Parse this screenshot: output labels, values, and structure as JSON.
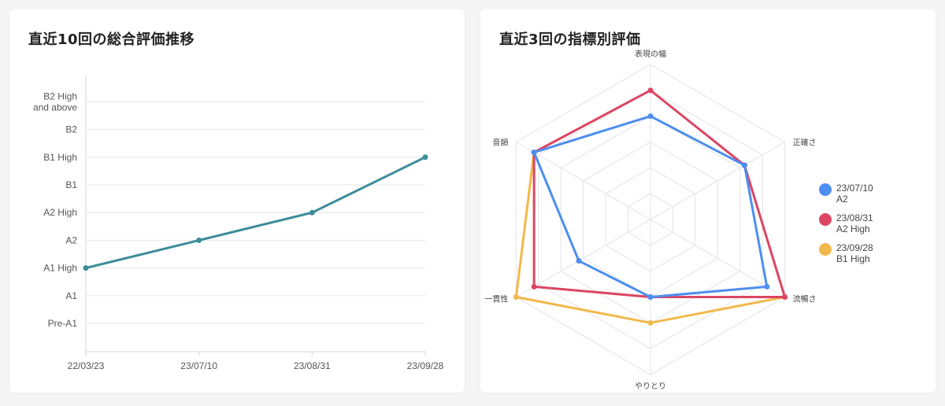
{
  "left_card": {
    "title": "直近10回の総合評価推移"
  },
  "right_card": {
    "title": "直近3回の指標別評価"
  },
  "chart_data": [
    {
      "type": "line",
      "title": "直近10回の総合評価推移",
      "xlabel": "",
      "ylabel": "",
      "y_categories": [
        "Pre-A1",
        "A1",
        "A1 High",
        "A2",
        "A2 High",
        "B1",
        "B1 High",
        "B2",
        "B2 High and above"
      ],
      "y_tick_lines": [
        [
          "Pre-A1"
        ],
        [
          "A1"
        ],
        [
          "A1 High"
        ],
        [
          "A2"
        ],
        [
          "A2 High"
        ],
        [
          "B1"
        ],
        [
          "B1 High"
        ],
        [
          "B2"
        ],
        [
          "B2 High",
          "and above"
        ]
      ],
      "categories": [
        "22/03/23",
        "23/07/10",
        "23/08/31",
        "23/09/28"
      ],
      "series": [
        {
          "values": [
            "A1 High",
            "A2",
            "A2 High",
            "B1 High"
          ],
          "color": "#3d8c9a"
        }
      ],
      "grid": true
    },
    {
      "type": "radar",
      "title": "直近3回の指標別評価",
      "axes": [
        "表現の幅",
        "正確さ",
        "流暢さ",
        "やりとり",
        "一貫性",
        "音韻"
      ],
      "range": [
        0,
        5
      ],
      "legend_position": "right",
      "series": [
        {
          "name": "23/07/10",
          "level": "A2",
          "color": "#4e8ef0",
          "values": [
            3.0,
            3.2,
            4.2,
            2.0,
            2.2,
            4.2
          ]
        },
        {
          "name": "23/08/31",
          "level": "A2 High",
          "color": "#dc4663",
          "values": [
            4.0,
            3.2,
            5.0,
            2.0,
            4.2,
            4.2
          ]
        },
        {
          "name": "23/09/28",
          "level": "B1 High",
          "color": "#f2b84b",
          "values": [
            null,
            null,
            5.0,
            3.0,
            5.0,
            4.2
          ]
        }
      ]
    }
  ]
}
